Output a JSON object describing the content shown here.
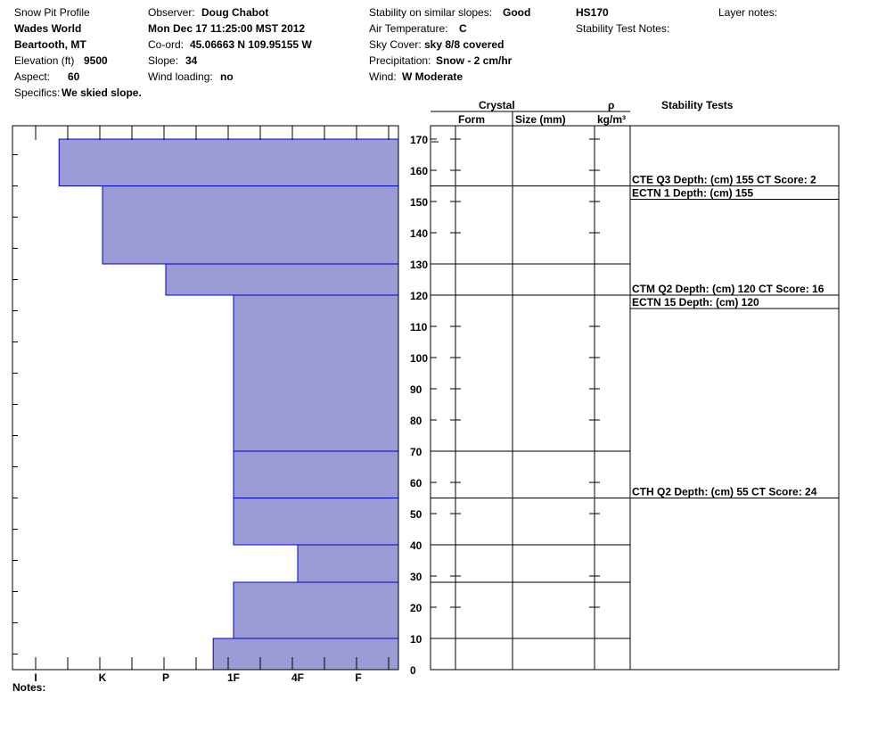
{
  "header": {
    "title": "Snow Pit Profile",
    "location_name": "Wades World",
    "region": "Beartooth, MT",
    "elevation_label": "Elevation (ft)",
    "elevation_value": "9500",
    "aspect_label": "Aspect:",
    "aspect_value": "60",
    "specifics_label": "Specifics:",
    "specifics_value": "We skied slope.",
    "observer_label": "Observer:",
    "observer_value": "Doug Chabot",
    "datetime": "Mon Dec 17 11:25:00 MST 2012",
    "coord_label": "Co-ord:",
    "coord_value": "45.06663 N 109.95155 W",
    "slope_label": "Slope:",
    "slope_value": "34",
    "wind_loading_label": "Wind loading:",
    "wind_loading_value": "no",
    "stability_label": "Stability on similar slopes:",
    "stability_value": "Good",
    "air_temp_label": "Air Temperature:",
    "air_temp_value": "C",
    "sky_label": "Sky Cover:",
    "sky_value": "sky 8/8 covered",
    "precip_label": "Precipitation:",
    "precip_value": "Snow - 2 cm/hr",
    "wind_label": "Wind:",
    "wind_value": "W Moderate",
    "hs": "HS170",
    "stability_test_notes_label": "Stability Test Notes:",
    "layer_notes_label": "Layer notes:"
  },
  "columns": {
    "crystal": "Crystal",
    "form": "Form",
    "size": "Size (mm)",
    "rho": "ρ",
    "density_unit": "kg/m³",
    "stability_tests": "Stability Tests"
  },
  "notes_label": "Notes:",
  "chart_data": {
    "type": "bar",
    "orientation": "horizontal-step",
    "y_axis": {
      "label": "",
      "unit": "cm",
      "range": [
        0,
        175
      ],
      "ticks": [
        0,
        10,
        20,
        30,
        40,
        50,
        60,
        70,
        80,
        90,
        100,
        110,
        120,
        130,
        140,
        150,
        160,
        170
      ]
    },
    "hardness_scale": [
      "I",
      "K",
      "P",
      "1F",
      "4F",
      "F"
    ],
    "hardness_scale_direction": "hardest-left",
    "layers": [
      {
        "bottom": 0,
        "top": 10,
        "hardness_index": 2.7
      },
      {
        "bottom": 10,
        "top": 28,
        "hardness_index": 3.0
      },
      {
        "bottom": 28,
        "top": 40,
        "hardness_index": 4.0
      },
      {
        "bottom": 40,
        "top": 55,
        "hardness_index": 3.0
      },
      {
        "bottom": 55,
        "top": 70,
        "hardness_index": 3.0
      },
      {
        "bottom": 70,
        "top": 120,
        "hardness_index": 3.0
      },
      {
        "bottom": 120,
        "top": 130,
        "hardness_index": 2.0
      },
      {
        "bottom": 130,
        "top": 155,
        "hardness_index": 1.0
      },
      {
        "bottom": 155,
        "top": 170,
        "hardness_index": 0.35
      }
    ],
    "layer_boundaries": [
      10,
      28,
      40,
      55,
      70,
      120,
      130,
      155
    ],
    "stability_tests": [
      {
        "depth": 155,
        "text": "CTE Q3 Depth: (cm) 155 CT Score: 2"
      },
      {
        "depth": 155,
        "text": "ECTN 1   Depth: (cm) 155"
      },
      {
        "depth": 120,
        "text": "CTM Q2 Depth: (cm) 120 CT Score: 16"
      },
      {
        "depth": 120,
        "text": "ECTN 15   Depth: (cm) 120"
      },
      {
        "depth": 55,
        "text": "CTH Q2 Depth: (cm) 55 CT Score: 24"
      }
    ],
    "colors": {
      "fill": "#9b9bd6",
      "edge": "#0000cc",
      "line": "#000000"
    }
  }
}
